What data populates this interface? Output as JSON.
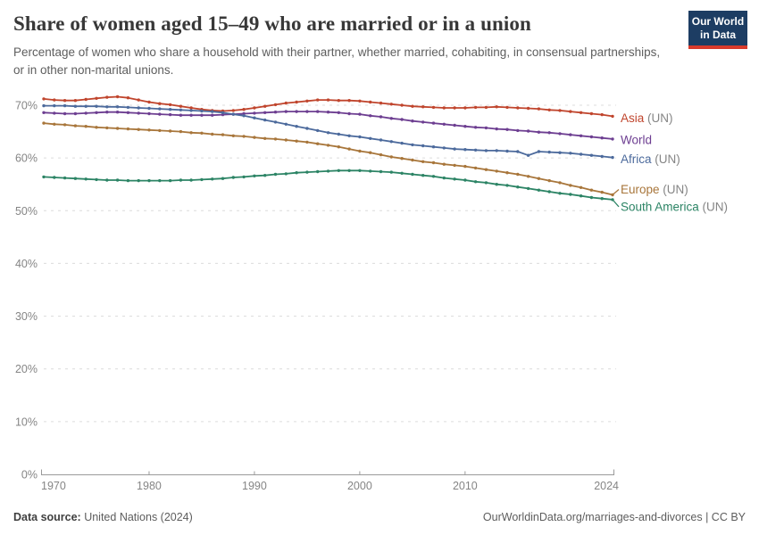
{
  "header": {
    "title": "Share of women aged 15–49 who are married or in a union",
    "subtitle": "Percentage of women who share a household with their partner, whether married, cohabiting, in consensual partnerships, or in other non-marital unions."
  },
  "logo": {
    "line1": "Our World",
    "line2": "in Data",
    "bg_color": "#1D3D63",
    "accent_color": "#D93A2B"
  },
  "footer": {
    "source_label": "Data source:",
    "source_value": " United Nations (2024)",
    "right_text": "OurWorldinData.org/marriages-and-divorces | CC BY"
  },
  "chart_data": {
    "type": "line",
    "title": "Share of women aged 15–49 who are married or in a union",
    "xlabel": "",
    "ylabel": "",
    "xlim": [
      1970,
      2024
    ],
    "ylim": [
      0,
      75
    ],
    "grid": "dashed-horizontal",
    "legend_position": "right-of-line-ends",
    "y_ticks": [
      0,
      10,
      20,
      30,
      40,
      50,
      60,
      70
    ],
    "y_tick_suffix": "%",
    "x_ticks": [
      1970,
      1980,
      1990,
      2000,
      2010,
      2024
    ],
    "x": [
      1970,
      1971,
      1972,
      1973,
      1974,
      1975,
      1976,
      1977,
      1978,
      1979,
      1980,
      1981,
      1982,
      1983,
      1984,
      1985,
      1986,
      1987,
      1988,
      1989,
      1990,
      1991,
      1992,
      1993,
      1994,
      1995,
      1996,
      1997,
      1998,
      1999,
      2000,
      2001,
      2002,
      2003,
      2004,
      2005,
      2006,
      2007,
      2008,
      2009,
      2010,
      2011,
      2012,
      2013,
      2014,
      2015,
      2016,
      2017,
      2018,
      2019,
      2020,
      2021,
      2022,
      2023,
      2024
    ],
    "series": [
      {
        "name": "Asia",
        "suffix": " (UN)",
        "color": "#C0452D",
        "label_dy": 2,
        "values": [
          71.2,
          71.0,
          70.9,
          70.9,
          71.1,
          71.3,
          71.5,
          71.6,
          71.4,
          71.0,
          70.6,
          70.3,
          70.1,
          69.8,
          69.5,
          69.2,
          69.0,
          68.9,
          69.0,
          69.2,
          69.5,
          69.8,
          70.1,
          70.4,
          70.6,
          70.8,
          71.0,
          71.0,
          70.9,
          70.9,
          70.8,
          70.6,
          70.4,
          70.2,
          70.0,
          69.8,
          69.7,
          69.6,
          69.5,
          69.5,
          69.5,
          69.6,
          69.6,
          69.7,
          69.6,
          69.5,
          69.4,
          69.3,
          69.1,
          69.0,
          68.8,
          68.6,
          68.4,
          68.2,
          67.9
        ]
      },
      {
        "name": "World",
        "suffix": "",
        "color": "#6D3E91",
        "label_dy": 1,
        "values": [
          68.6,
          68.5,
          68.4,
          68.4,
          68.5,
          68.6,
          68.7,
          68.7,
          68.6,
          68.5,
          68.4,
          68.3,
          68.2,
          68.1,
          68.1,
          68.1,
          68.1,
          68.2,
          68.3,
          68.4,
          68.5,
          68.6,
          68.7,
          68.8,
          68.8,
          68.8,
          68.8,
          68.7,
          68.6,
          68.4,
          68.3,
          68.0,
          67.8,
          67.5,
          67.3,
          67.0,
          66.8,
          66.6,
          66.4,
          66.2,
          66.0,
          65.8,
          65.7,
          65.5,
          65.4,
          65.2,
          65.1,
          64.9,
          64.8,
          64.6,
          64.4,
          64.2,
          64.0,
          63.8,
          63.6
        ]
      },
      {
        "name": "Africa",
        "suffix": " (UN)",
        "color": "#4C6A9C",
        "label_dy": 2,
        "values": [
          69.9,
          69.9,
          69.9,
          69.8,
          69.8,
          69.8,
          69.7,
          69.7,
          69.6,
          69.5,
          69.4,
          69.3,
          69.2,
          69.1,
          69.0,
          68.9,
          68.8,
          68.6,
          68.3,
          68.0,
          67.6,
          67.2,
          66.8,
          66.4,
          66.0,
          65.6,
          65.2,
          64.8,
          64.5,
          64.2,
          64.0,
          63.7,
          63.4,
          63.1,
          62.8,
          62.5,
          62.3,
          62.1,
          61.9,
          61.7,
          61.6,
          61.5,
          61.4,
          61.4,
          61.3,
          61.2,
          60.5,
          61.2,
          61.1,
          61.0,
          60.9,
          60.7,
          60.5,
          60.3,
          60.1
        ]
      },
      {
        "name": "Europe",
        "suffix": " (UN)",
        "color": "#A8763B",
        "label_dy": -6,
        "values": [
          66.6,
          66.4,
          66.3,
          66.1,
          66.0,
          65.8,
          65.7,
          65.6,
          65.5,
          65.4,
          65.3,
          65.2,
          65.1,
          65.0,
          64.8,
          64.7,
          64.5,
          64.4,
          64.2,
          64.1,
          63.9,
          63.7,
          63.6,
          63.4,
          63.2,
          63.0,
          62.7,
          62.4,
          62.1,
          61.7,
          61.3,
          61.0,
          60.6,
          60.2,
          59.9,
          59.6,
          59.3,
          59.1,
          58.8,
          58.6,
          58.4,
          58.1,
          57.8,
          57.5,
          57.2,
          56.9,
          56.5,
          56.1,
          55.7,
          55.3,
          54.8,
          54.4,
          53.9,
          53.5,
          53.0
        ]
      },
      {
        "name": "South America",
        "suffix": " (UN)",
        "color": "#2C8465",
        "label_dy": 8,
        "values": [
          56.4,
          56.3,
          56.2,
          56.1,
          56.0,
          55.9,
          55.8,
          55.8,
          55.7,
          55.7,
          55.7,
          55.7,
          55.7,
          55.8,
          55.8,
          55.9,
          56.0,
          56.1,
          56.3,
          56.4,
          56.6,
          56.7,
          56.9,
          57.0,
          57.2,
          57.3,
          57.4,
          57.5,
          57.6,
          57.6,
          57.6,
          57.5,
          57.4,
          57.3,
          57.1,
          56.9,
          56.7,
          56.5,
          56.2,
          56.0,
          55.8,
          55.5,
          55.3,
          55.0,
          54.8,
          54.5,
          54.2,
          53.9,
          53.6,
          53.3,
          53.1,
          52.8,
          52.5,
          52.3,
          52.1
        ]
      }
    ]
  }
}
